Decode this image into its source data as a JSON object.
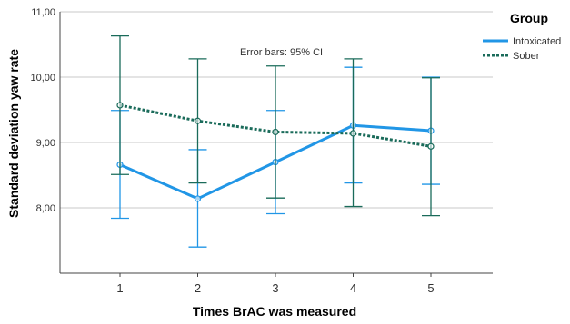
{
  "chart_data": {
    "type": "line",
    "xlabel": "Times BrAC was measured",
    "ylabel": "Standard deviation yaw rate",
    "annotation": "Error bars: 95% CI",
    "legend_title": "Group",
    "legend_position": "top-right",
    "grid": "horizontal",
    "x": [
      "1",
      "2",
      "3",
      "4",
      "5"
    ],
    "ylim": [
      7.0,
      11.0
    ],
    "y_ticks": [
      "8,00",
      "9,00",
      "10,00",
      "11,00"
    ],
    "series": [
      {
        "name": "Intoxicated",
        "color": "#2196e6",
        "line_style": "solid",
        "values": [
          8.66,
          8.14,
          8.7,
          9.26,
          9.18
        ],
        "ci_low": [
          7.84,
          7.4,
          7.91,
          8.38,
          8.36
        ],
        "ci_high": [
          9.49,
          8.89,
          9.49,
          10.15,
          10.0
        ]
      },
      {
        "name": "Sober",
        "color": "#1a6b5a",
        "line_style": "dotted",
        "values": [
          9.57,
          9.33,
          9.16,
          9.14,
          8.94
        ],
        "ci_low": [
          8.51,
          8.38,
          8.15,
          8.02,
          7.88
        ],
        "ci_high": [
          10.63,
          10.28,
          10.17,
          10.28,
          9.99
        ]
      }
    ]
  }
}
